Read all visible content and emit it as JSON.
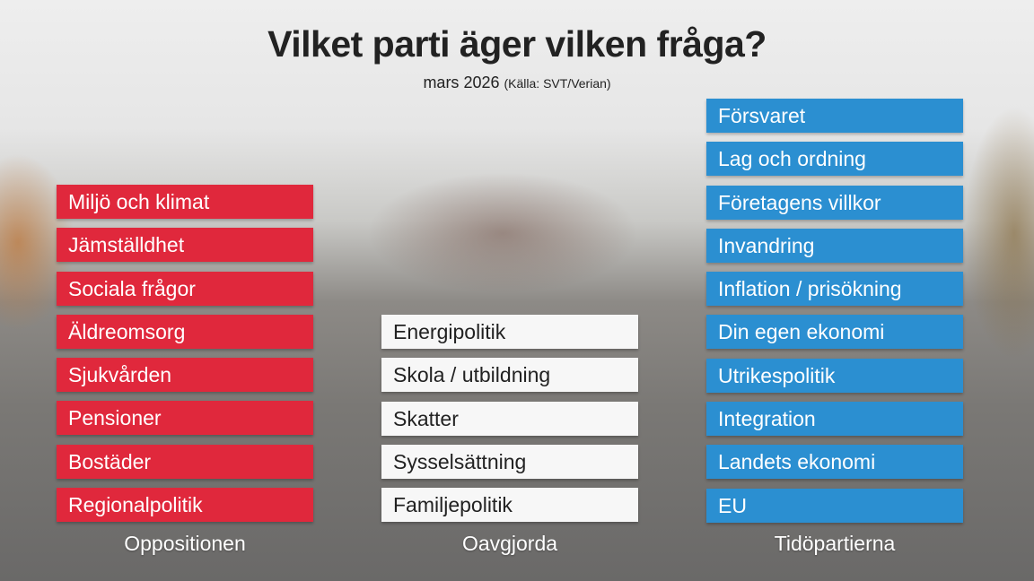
{
  "title": "Vilket parti äger vilken fråga?",
  "subtitle": {
    "date": "mars 2026",
    "source": "(Källa: SVT/Verian)"
  },
  "columns": [
    {
      "label": "Oppositionen",
      "color": "#e0283c",
      "items": [
        "Miljö och klimat",
        "Jämställdhet",
        "Sociala frågor",
        "Äldreomsorg",
        "Sjukvården",
        "Pensioner",
        "Bostäder",
        "Regionalpolitik"
      ]
    },
    {
      "label": "Oavgjorda",
      "color": "#f7f7f7",
      "items": [
        "Energipolitik",
        "Skola / utbildning",
        "Skatter",
        "Sysselsättning",
        "Familjepolitik"
      ]
    },
    {
      "label": "Tidöpartierna",
      "color": "#2b8fd1",
      "items": [
        "Försvaret",
        "Lag och ordning",
        "Företagens villkor",
        "Invandring",
        "Inflation / prisökning",
        "Din egen ekonomi",
        "Utrikespolitik",
        "Integration",
        "Landets ekonomi",
        "EU"
      ]
    }
  ]
}
